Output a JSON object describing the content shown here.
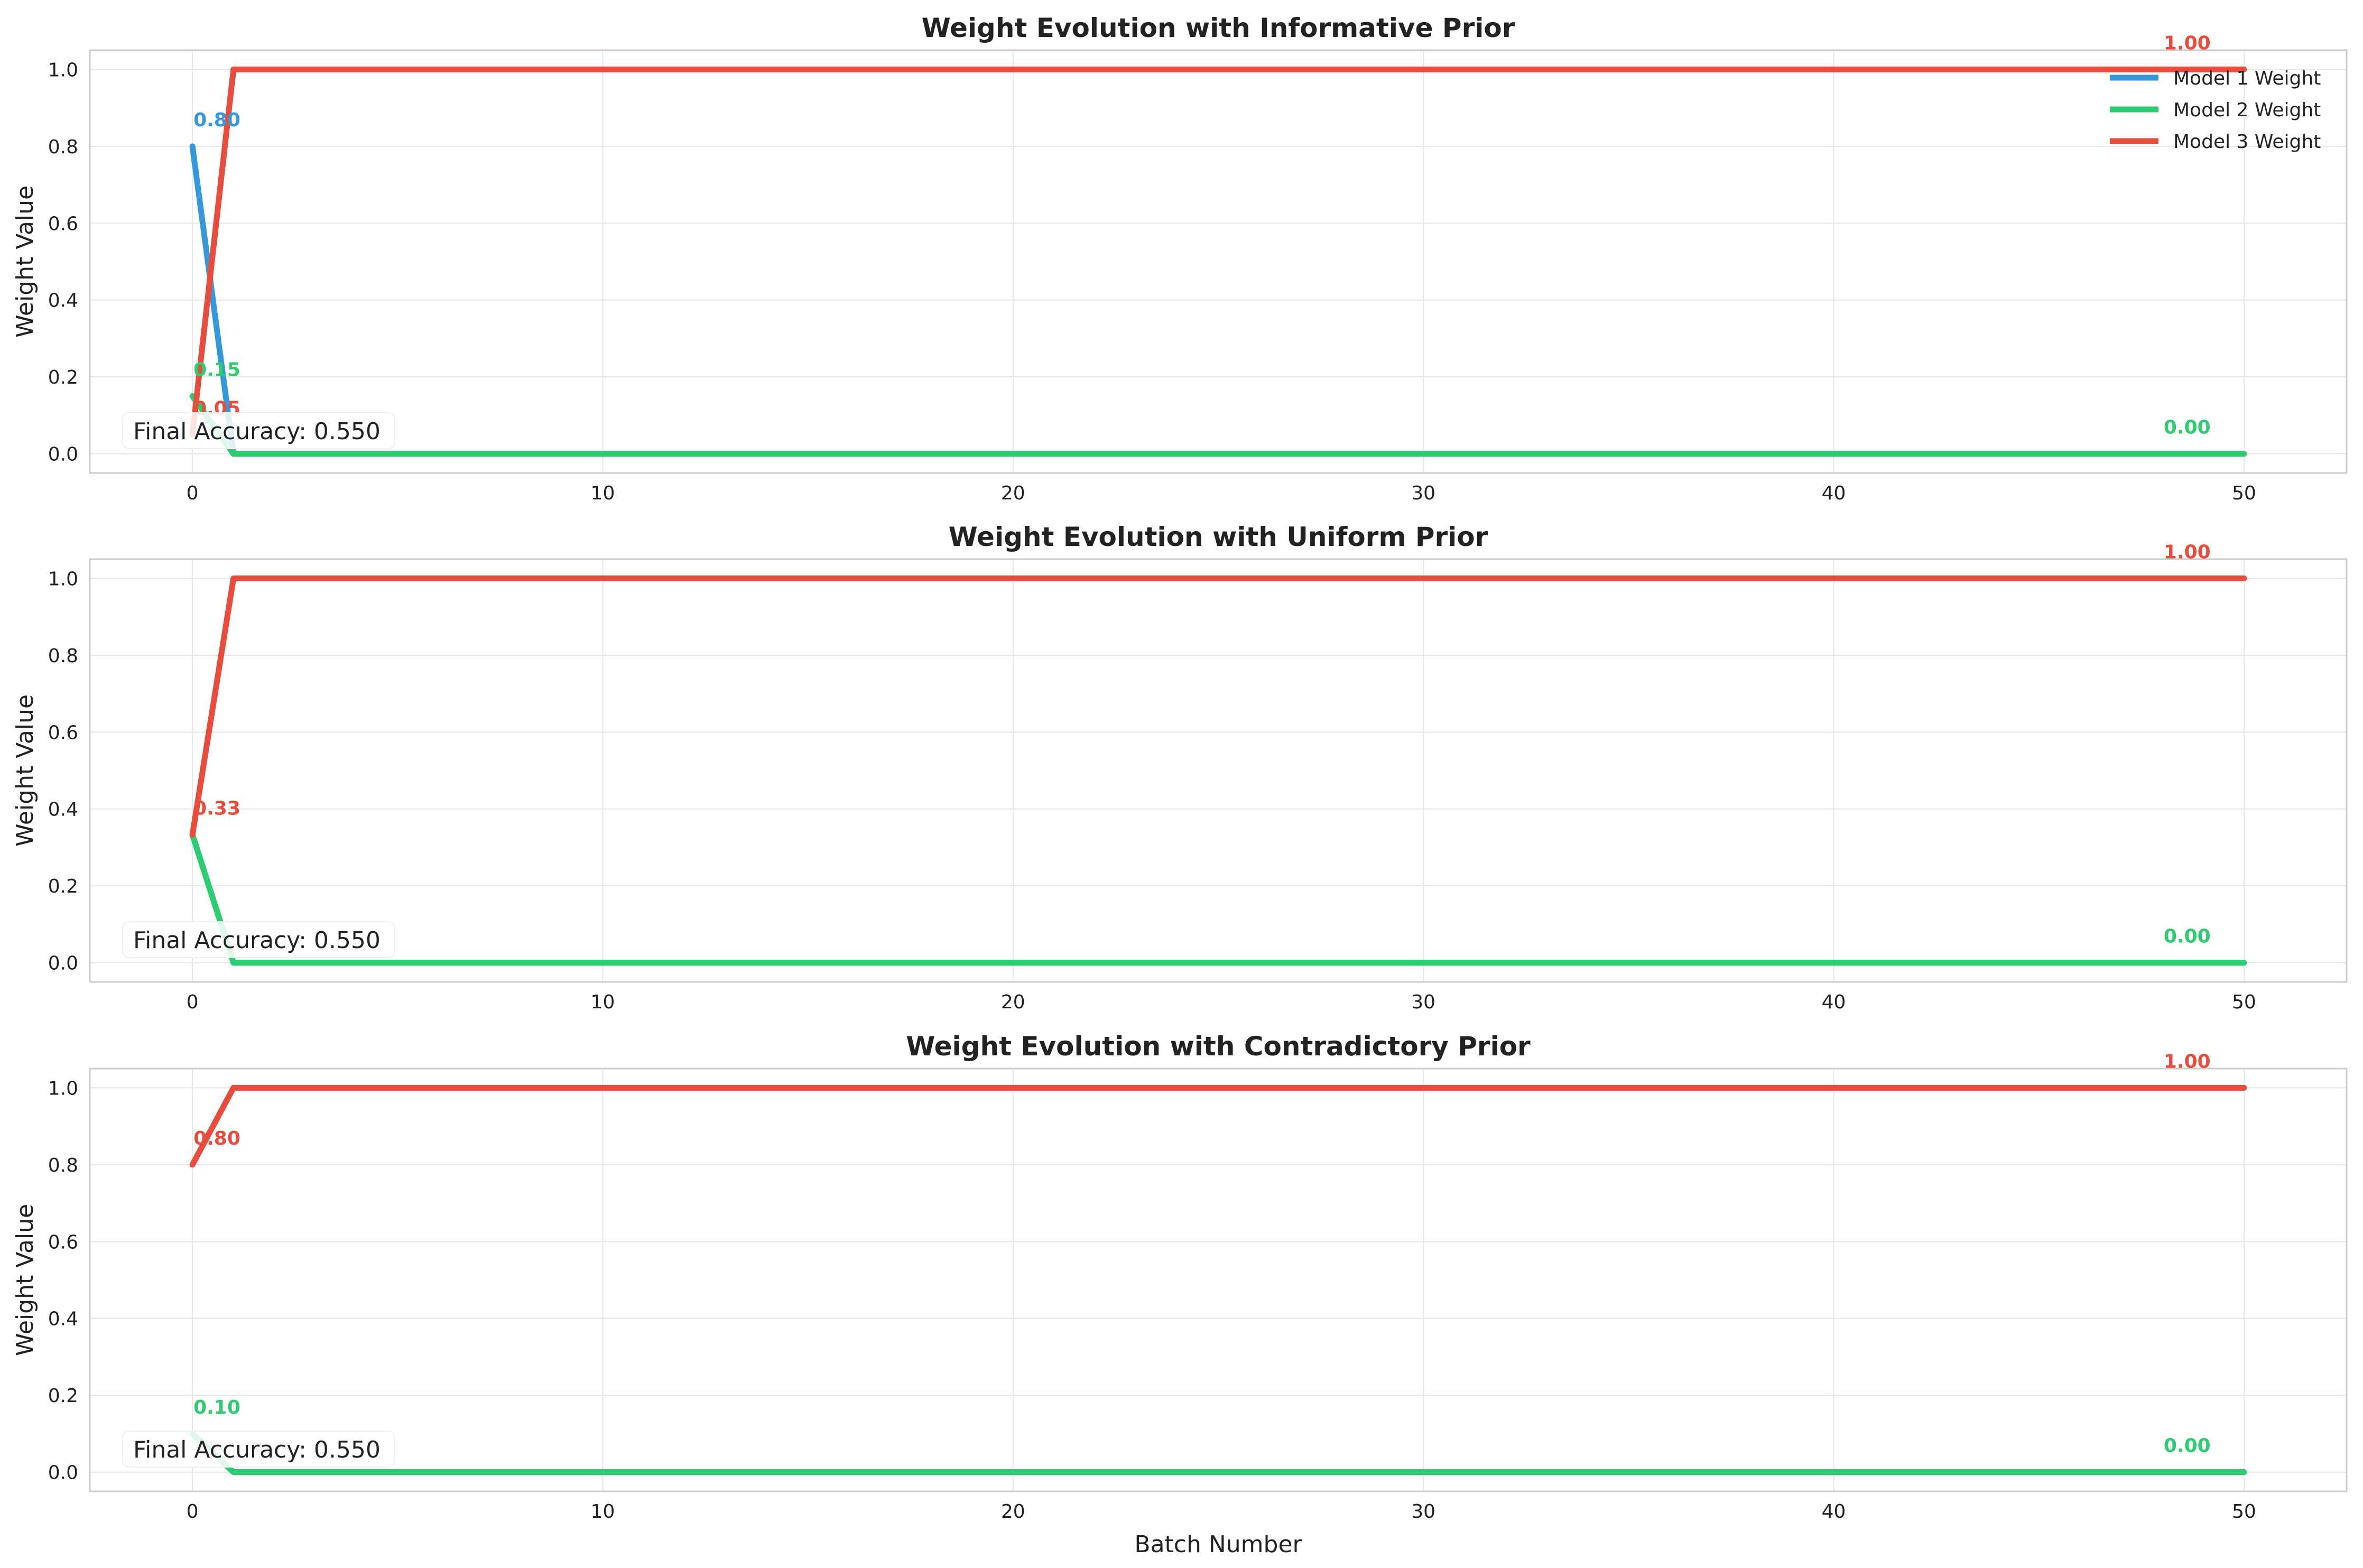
{
  "chart_data": [
    {
      "type": "line",
      "title": "Weight Evolution with Informative Prior",
      "xlabel": "",
      "ylabel": "Weight Value",
      "xlim": [
        -2.5,
        52.5
      ],
      "ylim": [
        -0.05,
        1.05
      ],
      "xticks": [
        0,
        10,
        20,
        30,
        40,
        50
      ],
      "yticks": [
        0.0,
        0.2,
        0.4,
        0.6,
        0.8,
        1.0
      ],
      "xtick_labels": [
        "0",
        "10",
        "20",
        "30",
        "40",
        "50"
      ],
      "ytick_labels": [
        "0.0",
        "0.2",
        "0.4",
        "0.6",
        "0.8",
        "1.0"
      ],
      "grid": true,
      "legend": "upper-right",
      "series": [
        {
          "name": "Model 1 Weight",
          "color": "#3498db",
          "x": [
            0,
            1,
            2,
            50
          ],
          "y": [
            0.8,
            0.0,
            0.0,
            0.0
          ]
        },
        {
          "name": "Model 2 Weight",
          "color": "#2ecc71",
          "x": [
            0,
            1,
            2,
            50
          ],
          "y": [
            0.15,
            0.0,
            0.0,
            0.0
          ]
        },
        {
          "name": "Model 3 Weight",
          "color": "#e74c3c",
          "x": [
            0,
            1,
            2,
            50
          ],
          "y": [
            0.05,
            1.0,
            1.0,
            1.0
          ]
        }
      ],
      "annotations": [
        {
          "text": "0.80",
          "x": 0,
          "y": 0.8,
          "color": "#3498db"
        },
        {
          "text": "0.15",
          "x": 0,
          "y": 0.15,
          "color": "#2ecc71"
        },
        {
          "text": "0.05",
          "x": 0,
          "y": 0.05,
          "color": "#e74c3c"
        },
        {
          "text": "1.00",
          "x": 50,
          "y": 1.0,
          "color": "#e74c3c"
        },
        {
          "text": "0.00",
          "x": 50,
          "y": 0.0,
          "color": "#2ecc71"
        }
      ],
      "accuracy_label": "Final Accuracy: 0.550"
    },
    {
      "type": "line",
      "title": "Weight Evolution with Uniform Prior",
      "xlabel": "",
      "ylabel": "Weight Value",
      "xlim": [
        -2.5,
        52.5
      ],
      "ylim": [
        -0.05,
        1.05
      ],
      "xticks": [
        0,
        10,
        20,
        30,
        40,
        50
      ],
      "yticks": [
        0.0,
        0.2,
        0.4,
        0.6,
        0.8,
        1.0
      ],
      "xtick_labels": [
        "0",
        "10",
        "20",
        "30",
        "40",
        "50"
      ],
      "ytick_labels": [
        "0.0",
        "0.2",
        "0.4",
        "0.6",
        "0.8",
        "1.0"
      ],
      "grid": true,
      "legend": "",
      "series": [
        {
          "name": "Model 1 Weight",
          "color": "#3498db",
          "x": [
            0,
            1,
            2,
            50
          ],
          "y": [
            0.333,
            0.0,
            0.0,
            0.0
          ]
        },
        {
          "name": "Model 2 Weight",
          "color": "#2ecc71",
          "x": [
            0,
            1,
            2,
            50
          ],
          "y": [
            0.333,
            0.0,
            0.0,
            0.0
          ]
        },
        {
          "name": "Model 3 Weight",
          "color": "#e74c3c",
          "x": [
            0,
            1,
            2,
            50
          ],
          "y": [
            0.333,
            1.0,
            1.0,
            1.0
          ]
        }
      ],
      "annotations": [
        {
          "text": "0.33",
          "x": 0,
          "y": 0.333,
          "color": "#e74c3c"
        },
        {
          "text": "1.00",
          "x": 50,
          "y": 1.0,
          "color": "#e74c3c"
        },
        {
          "text": "0.00",
          "x": 50,
          "y": 0.0,
          "color": "#2ecc71"
        }
      ],
      "accuracy_label": "Final Accuracy: 0.550"
    },
    {
      "type": "line",
      "title": "Weight Evolution with Contradictory Prior",
      "xlabel": "Batch Number",
      "ylabel": "Weight Value",
      "xlim": [
        -2.5,
        52.5
      ],
      "ylim": [
        -0.05,
        1.05
      ],
      "xticks": [
        0,
        10,
        20,
        30,
        40,
        50
      ],
      "yticks": [
        0.0,
        0.2,
        0.4,
        0.6,
        0.8,
        1.0
      ],
      "xtick_labels": [
        "0",
        "10",
        "20",
        "30",
        "40",
        "50"
      ],
      "ytick_labels": [
        "0.0",
        "0.2",
        "0.4",
        "0.6",
        "0.8",
        "1.0"
      ],
      "grid": true,
      "legend": "",
      "series": [
        {
          "name": "Model 1 Weight",
          "color": "#3498db",
          "x": [
            0,
            1,
            2,
            50
          ],
          "y": [
            0.1,
            0.0,
            0.0,
            0.0
          ]
        },
        {
          "name": "Model 2 Weight",
          "color": "#2ecc71",
          "x": [
            0,
            1,
            2,
            50
          ],
          "y": [
            0.1,
            0.0,
            0.0,
            0.0
          ]
        },
        {
          "name": "Model 3 Weight",
          "color": "#e74c3c",
          "x": [
            0,
            1,
            2,
            50
          ],
          "y": [
            0.8,
            1.0,
            1.0,
            1.0
          ]
        }
      ],
      "annotations": [
        {
          "text": "0.80",
          "x": 0,
          "y": 0.8,
          "color": "#e74c3c"
        },
        {
          "text": "0.10",
          "x": 0,
          "y": 0.1,
          "color": "#2ecc71"
        },
        {
          "text": "1.00",
          "x": 50,
          "y": 1.0,
          "color": "#e74c3c"
        },
        {
          "text": "0.00",
          "x": 50,
          "y": 0.0,
          "color": "#2ecc71"
        }
      ],
      "accuracy_label": "Final Accuracy: 0.550"
    }
  ]
}
